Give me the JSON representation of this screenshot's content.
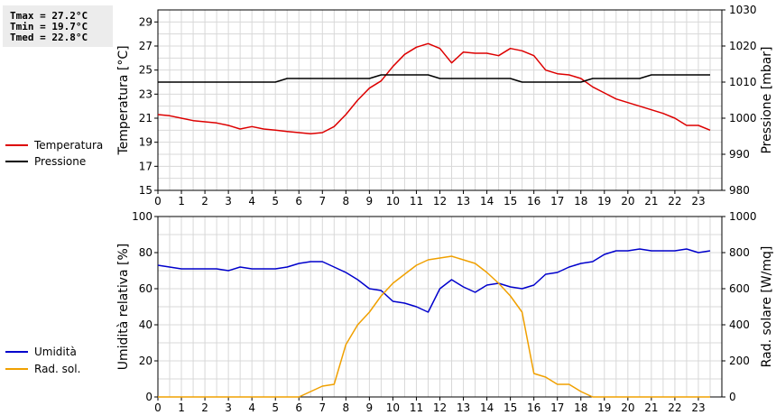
{
  "stats": {
    "tmax": "Tmax = 27.2°C",
    "tmin": "Tmin = 19.7°C",
    "tmed": "Tmed = 22.8°C"
  },
  "legend_top": [
    {
      "label": "Temperatura",
      "color": "#dd0000"
    },
    {
      "label": "Pressione",
      "color": "#000000"
    }
  ],
  "legend_bottom": [
    {
      "label": "Umidità",
      "color": "#0000cc"
    },
    {
      "label": "Rad. sol.",
      "color": "#f0a000"
    }
  ],
  "chart_data": [
    {
      "type": "line",
      "ylabel": "Temperatura [°C]",
      "y2label": "Pressione [mbar]",
      "xlim": [
        0,
        24
      ],
      "x_ticks": [
        0,
        1,
        2,
        3,
        4,
        5,
        6,
        7,
        8,
        9,
        10,
        11,
        12,
        13,
        14,
        15,
        16,
        17,
        18,
        19,
        20,
        21,
        22,
        23
      ],
      "ylim": [
        15,
        30
      ],
      "y_ticks": [
        15,
        17,
        19,
        21,
        23,
        25,
        27,
        29
      ],
      "y2lim": [
        980,
        1030
      ],
      "y2_ticks": [
        980,
        990,
        1000,
        1010,
        1020,
        1030
      ],
      "grid": true,
      "series": [
        {
          "name": "Temperatura",
          "axis": "left",
          "color": "#dd0000",
          "x": [
            0,
            0.5,
            1,
            1.5,
            2,
            2.5,
            3,
            3.5,
            4,
            4.5,
            5,
            5.5,
            6,
            6.5,
            7,
            7.5,
            8,
            8.5,
            9,
            9.5,
            10,
            10.5,
            11,
            11.5,
            12,
            12.5,
            13,
            13.5,
            14,
            14.5,
            15,
            15.5,
            16,
            16.5,
            17,
            17.5,
            18,
            18.5,
            19,
            19.5,
            20,
            20.5,
            21,
            21.5,
            22,
            22.5,
            23,
            23.5
          ],
          "y": [
            21.3,
            21.2,
            21.0,
            20.8,
            20.7,
            20.6,
            20.4,
            20.1,
            20.3,
            20.1,
            20.0,
            19.9,
            19.8,
            19.7,
            19.8,
            20.3,
            21.3,
            22.5,
            23.5,
            24.1,
            25.3,
            26.3,
            26.9,
            27.2,
            26.8,
            25.6,
            26.5,
            26.4,
            26.4,
            26.2,
            26.8,
            26.6,
            26.2,
            25.0,
            24.7,
            24.6,
            24.3,
            23.6,
            23.1,
            22.6,
            22.3,
            22.0,
            21.7,
            21.4,
            21.0,
            20.4,
            20.4,
            20.0
          ]
        },
        {
          "name": "Pressione",
          "axis": "right",
          "color": "#000000",
          "x": [
            0,
            0.5,
            1,
            1.5,
            2,
            2.5,
            3,
            3.5,
            4,
            4.5,
            5,
            5.5,
            6,
            6.5,
            7,
            7.5,
            8,
            8.5,
            9,
            9.5,
            10,
            10.5,
            11,
            11.5,
            12,
            12.5,
            13,
            13.5,
            14,
            14.5,
            15,
            15.5,
            16,
            16.5,
            17,
            17.5,
            18,
            18.5,
            19,
            19.5,
            20,
            20.5,
            21,
            21.5,
            22,
            22.5,
            23,
            23.5
          ],
          "y": [
            1010,
            1010,
            1010,
            1010,
            1010,
            1010,
            1010,
            1010,
            1010,
            1010,
            1010,
            1011,
            1011,
            1011,
            1011,
            1011,
            1011,
            1011,
            1011,
            1012,
            1012,
            1012,
            1012,
            1012,
            1011,
            1011,
            1011,
            1011,
            1011,
            1011,
            1011,
            1010,
            1010,
            1010,
            1010,
            1010,
            1010,
            1011,
            1011,
            1011,
            1011,
            1011,
            1012,
            1012,
            1012,
            1012,
            1012,
            1012
          ]
        }
      ]
    },
    {
      "type": "line",
      "ylabel": "Umidità relativa [%]",
      "y2label": "Rad. solare [W/mq]",
      "xlim": [
        0,
        24
      ],
      "x_ticks": [
        0,
        1,
        2,
        3,
        4,
        5,
        6,
        7,
        8,
        9,
        10,
        11,
        12,
        13,
        14,
        15,
        16,
        17,
        18,
        19,
        20,
        21,
        22,
        23
      ],
      "ylim": [
        0,
        100
      ],
      "y_ticks": [
        0,
        20,
        40,
        60,
        80,
        100
      ],
      "y2lim": [
        0,
        1000
      ],
      "y2_ticks": [
        0,
        200,
        400,
        600,
        800,
        1000
      ],
      "grid": true,
      "series": [
        {
          "name": "Umidità",
          "axis": "left",
          "color": "#0000cc",
          "x": [
            0,
            0.5,
            1,
            1.5,
            2,
            2.5,
            3,
            3.5,
            4,
            4.5,
            5,
            5.5,
            6,
            6.5,
            7,
            7.5,
            8,
            8.5,
            9,
            9.5,
            10,
            10.5,
            11,
            11.5,
            12,
            12.5,
            13,
            13.5,
            14,
            14.5,
            15,
            15.5,
            16,
            16.5,
            17,
            17.5,
            18,
            18.5,
            19,
            19.5,
            20,
            20.5,
            21,
            21.5,
            22,
            22.5,
            23,
            23.5
          ],
          "y": [
            73,
            72,
            71,
            71,
            71,
            71,
            70,
            72,
            71,
            71,
            71,
            72,
            74,
            75,
            75,
            72,
            69,
            65,
            60,
            59,
            53,
            52,
            50,
            47,
            60,
            65,
            61,
            58,
            62,
            63,
            61,
            60,
            62,
            68,
            69,
            72,
            74,
            75,
            79,
            81,
            81,
            82,
            81,
            81,
            81,
            82,
            80,
            81
          ]
        },
        {
          "name": "Rad. sol.",
          "axis": "right",
          "color": "#f0a000",
          "x": [
            0,
            0.5,
            1,
            1.5,
            2,
            2.5,
            3,
            3.5,
            4,
            4.5,
            5,
            5.5,
            6,
            6.5,
            7,
            7.5,
            8,
            8.5,
            9,
            9.5,
            10,
            10.5,
            11,
            11.5,
            12,
            12.5,
            13,
            13.5,
            14,
            14.5,
            15,
            15.5,
            16,
            16.5,
            17,
            17.5,
            18,
            18.5,
            19,
            19.5,
            20,
            20.5,
            21,
            21.5,
            22,
            22.5,
            23,
            23.5
          ],
          "y": [
            0,
            0,
            0,
            0,
            0,
            0,
            0,
            0,
            0,
            0,
            0,
            0,
            0,
            30,
            60,
            70,
            290,
            400,
            470,
            560,
            630,
            680,
            730,
            760,
            770,
            780,
            760,
            740,
            690,
            630,
            560,
            470,
            130,
            110,
            70,
            70,
            30,
            0,
            0,
            0,
            0,
            0,
            0,
            0,
            0,
            0,
            0,
            0
          ]
        }
      ]
    }
  ]
}
